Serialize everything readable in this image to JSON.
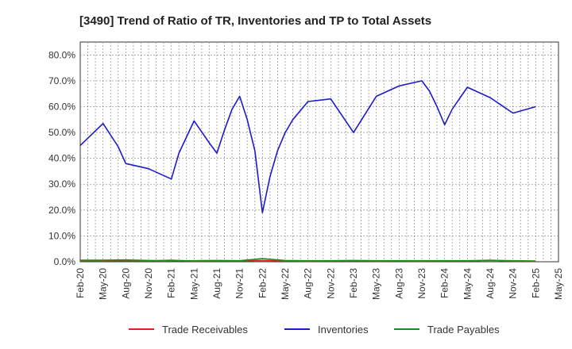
{
  "chart_data": {
    "type": "line",
    "title": "[3490]  Trend of Ratio of TR, Inventories and TP to Total Assets",
    "xlabel": "",
    "ylabel": "",
    "x_tick_labels": [
      "Feb-20",
      "May-20",
      "Aug-20",
      "Nov-20",
      "Feb-21",
      "May-21",
      "Aug-21",
      "Nov-21",
      "Feb-22",
      "May-22",
      "Aug-22",
      "Nov-22",
      "Feb-23",
      "May-23",
      "Aug-23",
      "Nov-23",
      "Feb-24",
      "May-24",
      "Aug-24",
      "Nov-24",
      "Feb-25",
      "May-25"
    ],
    "y_tick_labels": [
      "0.0%",
      "10.0%",
      "20.0%",
      "30.0%",
      "40.0%",
      "50.0%",
      "60.0%",
      "70.0%",
      "80.0%"
    ],
    "ylim": [
      0,
      85
    ],
    "xlim_months": [
      0,
      63
    ],
    "grid": true,
    "legend_position": "bottom",
    "series": [
      {
        "name": "Trade Receivables",
        "color": "#e8201c",
        "x": [
          "2020-02",
          "2020-05",
          "2020-08",
          "2020-11",
          "2021-02",
          "2021-05",
          "2021-08",
          "2021-11",
          "2022-02",
          "2022-05",
          "2022-08",
          "2022-11",
          "2023-02",
          "2023-05",
          "2023-08",
          "2023-11",
          "2024-02",
          "2024-05",
          "2024-08",
          "2024-11",
          "2025-02"
        ],
        "values": [
          0.3,
          0.3,
          0.4,
          0.3,
          0.6,
          0.2,
          0.3,
          0.3,
          0.5,
          0.3,
          0.2,
          0.3,
          0.4,
          0.2,
          0.3,
          0.2,
          0.3,
          0.3,
          0.6,
          0.2,
          0.2
        ]
      },
      {
        "name": "Inventories",
        "color": "#1c1ccc",
        "x": [
          "2020-02",
          "2020-05",
          "2020-07",
          "2020-08",
          "2020-11",
          "2021-02",
          "2021-03",
          "2021-05",
          "2021-07",
          "2021-08",
          "2021-09",
          "2021-10",
          "2021-11",
          "2021-12",
          "2022-01",
          "2022-02",
          "2022-03",
          "2022-04",
          "2022-05",
          "2022-06",
          "2022-08",
          "2022-11",
          "2023-02",
          "2023-05",
          "2023-08",
          "2023-11",
          "2023-12",
          "2024-01",
          "2024-02",
          "2024-03",
          "2024-05",
          "2024-08",
          "2024-11",
          "2025-02"
        ],
        "values": [
          45.0,
          53.5,
          44.5,
          38.0,
          36.0,
          32.0,
          42.0,
          54.5,
          46.0,
          42.0,
          51.0,
          59.0,
          64.0,
          55.0,
          43.0,
          19.0,
          33.0,
          43.0,
          50.0,
          55.0,
          62.0,
          63.0,
          50.0,
          64.0,
          68.0,
          70.0,
          66.0,
          60.0,
          53.0,
          59.0,
          67.5,
          63.5,
          57.5,
          60.0
        ]
      },
      {
        "name": "Trade Payables",
        "color": "#1e8c1e",
        "x": [
          "2020-02",
          "2020-05",
          "2020-08",
          "2020-11",
          "2021-02",
          "2021-05",
          "2021-08",
          "2021-11",
          "2022-02",
          "2022-05",
          "2022-08",
          "2022-11",
          "2023-02",
          "2023-05",
          "2023-08",
          "2023-11",
          "2024-02",
          "2024-05",
          "2024-08",
          "2024-11",
          "2025-02"
        ],
        "values": [
          0.6,
          0.6,
          0.7,
          0.5,
          0.4,
          0.4,
          0.5,
          0.4,
          1.2,
          0.5,
          0.4,
          0.4,
          0.5,
          0.4,
          0.4,
          0.4,
          0.4,
          0.4,
          0.5,
          0.4,
          0.3
        ]
      }
    ]
  }
}
